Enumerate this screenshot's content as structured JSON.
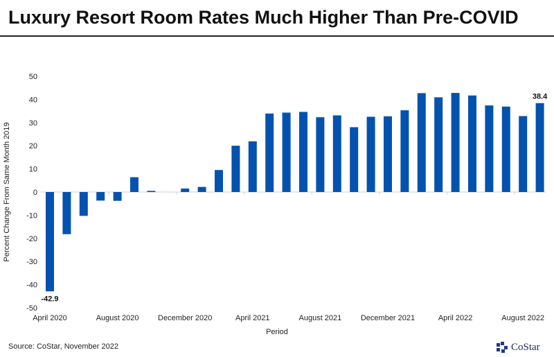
{
  "chart_data": {
    "type": "bar",
    "title": "Luxury Resort Room Rates Much Higher Than Pre-COVID",
    "xlabel": "Period",
    "ylabel": "Percent Change From Same Month 2019",
    "ylim": [
      -50,
      50
    ],
    "yticks": [
      50,
      40,
      30,
      20,
      10,
      0,
      -10,
      -20,
      -30,
      -40,
      -50
    ],
    "xtick_labels": [
      "April 2020",
      "August 2020",
      "December 2020",
      "April 2021",
      "August 2021",
      "December 2021",
      "April 2022",
      "August 2022"
    ],
    "categories": [
      "Apr 2020",
      "May 2020",
      "Jun 2020",
      "Jul 2020",
      "Aug 2020",
      "Sep 2020",
      "Oct 2020",
      "Nov 2020",
      "Dec 2020",
      "Jan 2021",
      "Feb 2021",
      "Mar 2021",
      "Apr 2021",
      "May 2021",
      "Jun 2021",
      "Jul 2021",
      "Aug 2021",
      "Sep 2021",
      "Oct 2021",
      "Nov 2021",
      "Dec 2021",
      "Jan 2022",
      "Feb 2022",
      "Mar 2022",
      "Apr 2022",
      "May 2022",
      "Jun 2022",
      "Jul 2022",
      "Aug 2022",
      "Sep 2022"
    ],
    "values": [
      -42.9,
      -18.2,
      -10.3,
      -3.7,
      -3.8,
      6.4,
      0.5,
      0,
      1.5,
      2.2,
      9.5,
      20.0,
      21.9,
      33.9,
      34.3,
      34.6,
      32.3,
      33.1,
      28.0,
      32.5,
      32.7,
      35.3,
      42.7,
      40.9,
      42.8,
      41.7,
      37.4,
      36.9,
      32.8,
      38.4
    ],
    "data_labels": [
      {
        "index": 0,
        "text": "-42.9"
      },
      {
        "index": 29,
        "text": "38.4"
      }
    ],
    "bar_color": "#0452b0",
    "grid": false
  },
  "footer": {
    "source": "Source: CoStar, November 2022",
    "logo": "CoStar"
  }
}
